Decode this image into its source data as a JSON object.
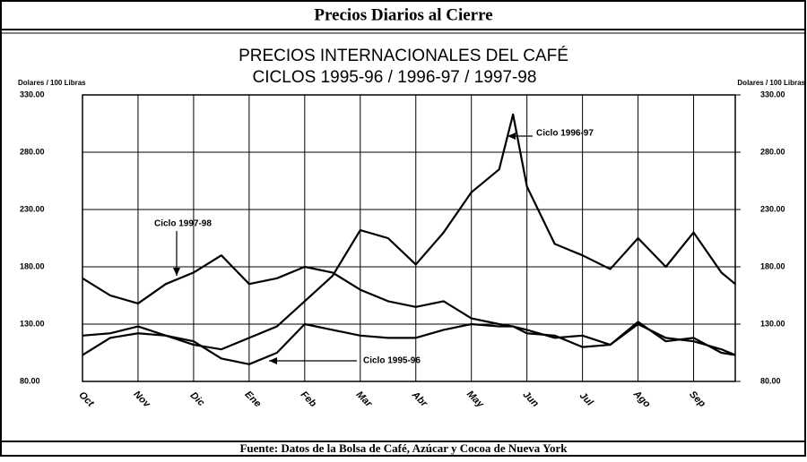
{
  "chart_data": {
    "type": "line",
    "header": "Precios Diarios al Cierre",
    "title": "PRECIOS INTERNACIONALES DEL CAFÉ",
    "subtitle": "CICLOS 1995-96 / 1996-97 / 1997-98",
    "y_label": "Dolares / 100 Libras",
    "y2_label": "Dolares / 100 Libras",
    "footer": "Fuente: Datos de la Bolsa de Café, Azúcar y Cocoa de Nueva York",
    "x": [
      0,
      0.5,
      1,
      1.5,
      2,
      2.5,
      3,
      3.5,
      4,
      4.5,
      5,
      5.5,
      6,
      6.5,
      7,
      7.5,
      7.75,
      8,
      8.5,
      9,
      9.5,
      10,
      10.5,
      11,
      11.5,
      11.75
    ],
    "xlim": [
      0,
      11.75
    ],
    "xticks": [
      {
        "value": 0,
        "label": "Oct"
      },
      {
        "value": 1,
        "label": "Nov"
      },
      {
        "value": 2,
        "label": "Dic"
      },
      {
        "value": 3,
        "label": "Ene"
      },
      {
        "value": 4,
        "label": "Feb"
      },
      {
        "value": 5,
        "label": "Mar"
      },
      {
        "value": 6,
        "label": "Abr"
      },
      {
        "value": 7,
        "label": "May"
      },
      {
        "value": 8,
        "label": "Jun"
      },
      {
        "value": 9,
        "label": "Jul"
      },
      {
        "value": 10,
        "label": "Ago"
      },
      {
        "value": 11,
        "label": "Sep"
      }
    ],
    "ylim": [
      80,
      330
    ],
    "yticks": [
      {
        "value": 80,
        "label": "80.00"
      },
      {
        "value": 130,
        "label": "130.00"
      },
      {
        "value": 180,
        "label": "180.00"
      },
      {
        "value": 230,
        "label": "230.00"
      },
      {
        "value": 280,
        "label": "280.00"
      },
      {
        "value": 330,
        "label": "330.00"
      }
    ],
    "y2lim": [
      80,
      330
    ],
    "y2ticks": [
      {
        "value": 80,
        "label": "80.00"
      },
      {
        "value": 130,
        "label": "130.00"
      },
      {
        "value": 180,
        "label": "180.00"
      },
      {
        "value": 230,
        "label": "230.00"
      },
      {
        "value": 280,
        "label": "280.00"
      },
      {
        "value": 330,
        "label": "330.00"
      }
    ],
    "grid": true,
    "series": [
      {
        "name": "Ciclo 1996-97",
        "color": "#000000",
        "values": [
          103,
          118,
          122,
          120,
          112,
          108,
          118,
          128,
          150,
          172,
          212,
          205,
          182,
          210,
          245,
          265,
          313,
          250,
          200,
          190,
          178,
          205,
          180,
          210,
          175,
          165
        ]
      },
      {
        "name": "Ciclo 1997-98",
        "color": "#000000",
        "values": [
          170,
          155,
          148,
          165,
          175,
          190,
          165,
          170,
          180,
          175,
          160,
          150,
          145,
          150,
          135,
          130,
          128,
          125,
          118,
          120,
          112,
          132,
          115,
          118,
          105,
          103
        ]
      },
      {
        "name": "Ciclo 1995-96",
        "color": "#000000",
        "values": [
          120,
          122,
          128,
          120,
          115,
          100,
          95,
          105,
          130,
          125,
          120,
          118,
          118,
          125,
          130,
          128,
          128,
          122,
          120,
          110,
          112,
          130,
          118,
          115,
          108,
          103
        ]
      }
    ]
  }
}
